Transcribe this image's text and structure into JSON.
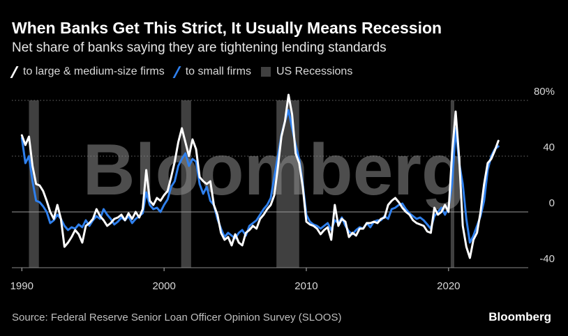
{
  "title": "When Banks Get This Strict, It Usually Means Recession",
  "subtitle": "Net share of banks saying they are tightening lending standards",
  "legend": [
    {
      "label": "to large & medium-size firms",
      "color": "#ffffff"
    },
    {
      "label": "to small firms",
      "color": "#2f80ed"
    },
    {
      "label": "US Recessions",
      "color": "#404040"
    }
  ],
  "source": "Source: Federal Reserve Senior Loan Officer Opinion Survey (SLOOS)",
  "brand": "Bloomberg",
  "watermark": "Bloomberg",
  "chart_data": {
    "type": "line",
    "title": "When Banks Get This Strict, It Usually Means Recession",
    "ylabel": "Net share of banks saying they are tightening lending standards (%)",
    "xlim": [
      1989.3,
      2025.6
    ],
    "ylim": [
      -40,
      80
    ],
    "y_ticks": [
      {
        "value": 80,
        "label": "80%"
      },
      {
        "value": 40,
        "label": "40"
      },
      {
        "value": 0,
        "label": "0"
      },
      {
        "value": -40,
        "label": "-40"
      }
    ],
    "x_ticks": [
      {
        "value": 1990,
        "label": "1990"
      },
      {
        "value": 2000,
        "label": "2000"
      },
      {
        "value": 2010,
        "label": "2010"
      },
      {
        "value": 2020,
        "label": "2020"
      }
    ],
    "recessions": [
      [
        1990.5,
        1991.2
      ],
      [
        2001.2,
        2001.9
      ],
      [
        2007.9,
        2009.5
      ],
      [
        2020.15,
        2020.4
      ]
    ],
    "series": [
      {
        "name": "to small firms",
        "color": "#2f80ed",
        "points": [
          [
            1990.0,
            53
          ],
          [
            1990.25,
            35
          ],
          [
            1990.5,
            40
          ],
          [
            1990.75,
            22
          ],
          [
            1991.0,
            8
          ],
          [
            1991.25,
            7
          ],
          [
            1991.5,
            4
          ],
          [
            1991.75,
            0
          ],
          [
            1992.0,
            -8
          ],
          [
            1992.25,
            -6
          ],
          [
            1992.5,
            -2
          ],
          [
            1992.75,
            -5
          ],
          [
            1993.0,
            -10
          ],
          [
            1993.25,
            -13
          ],
          [
            1993.5,
            -11
          ],
          [
            1993.75,
            -12
          ],
          [
            1994.0,
            -9
          ],
          [
            1994.25,
            -11
          ],
          [
            1994.5,
            -6
          ],
          [
            1994.75,
            -10
          ],
          [
            1995.0,
            -6
          ],
          [
            1995.25,
            -3
          ],
          [
            1995.5,
            -5
          ],
          [
            1995.75,
            2
          ],
          [
            1996.0,
            -2
          ],
          [
            1996.25,
            -5
          ],
          [
            1996.5,
            -9
          ],
          [
            1996.75,
            -7
          ],
          [
            1997.0,
            -4
          ],
          [
            1997.25,
            -6
          ],
          [
            1997.5,
            -3
          ],
          [
            1997.75,
            -8
          ],
          [
            1998.0,
            -5
          ],
          [
            1998.25,
            -3
          ],
          [
            1998.5,
            -1
          ],
          [
            1998.75,
            14
          ],
          [
            1999.0,
            5
          ],
          [
            1999.25,
            2
          ],
          [
            1999.5,
            3
          ],
          [
            1999.75,
            0
          ],
          [
            2000.0,
            5
          ],
          [
            2000.25,
            9
          ],
          [
            2000.5,
            18
          ],
          [
            2000.75,
            22
          ],
          [
            2001.0,
            33
          ],
          [
            2001.25,
            38
          ],
          [
            2001.5,
            42
          ],
          [
            2001.75,
            33
          ],
          [
            2002.0,
            38
          ],
          [
            2002.25,
            36
          ],
          [
            2002.5,
            20
          ],
          [
            2002.75,
            13
          ],
          [
            2003.0,
            18
          ],
          [
            2003.25,
            8
          ],
          [
            2003.5,
            5
          ],
          [
            2003.75,
            -5
          ],
          [
            2004.0,
            -12
          ],
          [
            2004.25,
            -18
          ],
          [
            2004.5,
            -15
          ],
          [
            2004.75,
            -17
          ],
          [
            2005.0,
            -19
          ],
          [
            2005.25,
            -15
          ],
          [
            2005.5,
            -13
          ],
          [
            2005.75,
            -17
          ],
          [
            2006.0,
            -10
          ],
          [
            2006.25,
            -8
          ],
          [
            2006.5,
            -6
          ],
          [
            2006.75,
            -2
          ],
          [
            2007.0,
            2
          ],
          [
            2007.25,
            5
          ],
          [
            2007.5,
            10
          ],
          [
            2007.75,
            25
          ],
          [
            2008.0,
            40
          ],
          [
            2008.25,
            55
          ],
          [
            2008.5,
            65
          ],
          [
            2008.75,
            73
          ],
          [
            2009.0,
            60
          ],
          [
            2009.25,
            48
          ],
          [
            2009.5,
            38
          ],
          [
            2009.75,
            20
          ],
          [
            2010.0,
            -2
          ],
          [
            2010.25,
            -7
          ],
          [
            2010.5,
            -9
          ],
          [
            2010.75,
            -10
          ],
          [
            2011.0,
            -12
          ],
          [
            2011.25,
            -10
          ],
          [
            2011.5,
            -8
          ],
          [
            2011.75,
            -13
          ],
          [
            2012.0,
            -6
          ],
          [
            2012.25,
            -8
          ],
          [
            2012.5,
            -4
          ],
          [
            2012.75,
            -10
          ],
          [
            2013.0,
            -14
          ],
          [
            2013.25,
            -16
          ],
          [
            2013.5,
            -13
          ],
          [
            2013.75,
            -11
          ],
          [
            2014.0,
            -12
          ],
          [
            2014.25,
            -8
          ],
          [
            2014.5,
            -11
          ],
          [
            2014.75,
            -7
          ],
          [
            2015.0,
            -6
          ],
          [
            2015.25,
            -6
          ],
          [
            2015.5,
            -3
          ],
          [
            2015.75,
            -5
          ],
          [
            2016.0,
            2
          ],
          [
            2016.25,
            3
          ],
          [
            2016.5,
            5
          ],
          [
            2016.75,
            6
          ],
          [
            2017.0,
            2
          ],
          [
            2017.25,
            -1
          ],
          [
            2017.5,
            -3
          ],
          [
            2017.75,
            -5
          ],
          [
            2018.0,
            -4
          ],
          [
            2018.25,
            -6
          ],
          [
            2018.5,
            -9
          ],
          [
            2018.75,
            -12
          ],
          [
            2019.0,
            -3
          ],
          [
            2019.25,
            0
          ],
          [
            2019.5,
            3
          ],
          [
            2019.75,
            -2
          ],
          [
            2020.0,
            3
          ],
          [
            2020.25,
            20
          ],
          [
            2020.5,
            60
          ],
          [
            2020.75,
            35
          ],
          [
            2021.0,
            20
          ],
          [
            2021.25,
            -5
          ],
          [
            2021.5,
            -22
          ],
          [
            2021.75,
            -17
          ],
          [
            2022.0,
            -10
          ],
          [
            2022.25,
            -3
          ],
          [
            2022.5,
            8
          ],
          [
            2022.75,
            30
          ],
          [
            2023.0,
            40
          ],
          [
            2023.25,
            45
          ],
          [
            2023.5,
            47
          ]
        ]
      },
      {
        "name": "to large & medium-size firms",
        "color": "#ffffff",
        "points": [
          [
            1990.0,
            55
          ],
          [
            1990.25,
            48
          ],
          [
            1990.5,
            54
          ],
          [
            1990.75,
            33
          ],
          [
            1991.0,
            20
          ],
          [
            1991.25,
            19
          ],
          [
            1991.5,
            15
          ],
          [
            1991.75,
            8
          ],
          [
            1992.0,
            0
          ],
          [
            1992.25,
            -5
          ],
          [
            1992.5,
            5
          ],
          [
            1992.75,
            -5
          ],
          [
            1993.0,
            -25
          ],
          [
            1993.25,
            -22
          ],
          [
            1993.5,
            -18
          ],
          [
            1993.75,
            -13
          ],
          [
            1994.0,
            -16
          ],
          [
            1994.25,
            -22
          ],
          [
            1994.5,
            -10
          ],
          [
            1994.75,
            -8
          ],
          [
            1995.0,
            -5
          ],
          [
            1995.25,
            2
          ],
          [
            1995.5,
            -3
          ],
          [
            1995.75,
            -6
          ],
          [
            1996.0,
            -10
          ],
          [
            1996.25,
            -8
          ],
          [
            1996.5,
            -5
          ],
          [
            1996.75,
            -4
          ],
          [
            1997.0,
            -2
          ],
          [
            1997.25,
            -6
          ],
          [
            1997.5,
            -1
          ],
          [
            1997.75,
            -5
          ],
          [
            1998.0,
            0
          ],
          [
            1998.25,
            -4
          ],
          [
            1998.5,
            2
          ],
          [
            1998.75,
            30
          ],
          [
            1999.0,
            8
          ],
          [
            1999.25,
            5
          ],
          [
            1999.5,
            10
          ],
          [
            1999.75,
            8
          ],
          [
            2000.0,
            12
          ],
          [
            2000.25,
            15
          ],
          [
            2000.5,
            25
          ],
          [
            2000.75,
            36
          ],
          [
            2001.0,
            50
          ],
          [
            2001.25,
            60
          ],
          [
            2001.5,
            50
          ],
          [
            2001.75,
            40
          ],
          [
            2002.0,
            52
          ],
          [
            2002.25,
            45
          ],
          [
            2002.5,
            25
          ],
          [
            2002.75,
            22
          ],
          [
            2003.0,
            20
          ],
          [
            2003.25,
            22
          ],
          [
            2003.5,
            5
          ],
          [
            2003.75,
            -2
          ],
          [
            2004.0,
            -15
          ],
          [
            2004.25,
            -20
          ],
          [
            2004.5,
            -18
          ],
          [
            2004.75,
            -24
          ],
          [
            2005.0,
            -16
          ],
          [
            2005.25,
            -22
          ],
          [
            2005.5,
            -24
          ],
          [
            2005.75,
            -15
          ],
          [
            2006.0,
            -13
          ],
          [
            2006.25,
            -10
          ],
          [
            2006.5,
            -12
          ],
          [
            2006.75,
            -5
          ],
          [
            2007.0,
            -2
          ],
          [
            2007.25,
            2
          ],
          [
            2007.5,
            5
          ],
          [
            2007.75,
            12
          ],
          [
            2008.0,
            32
          ],
          [
            2008.25,
            54
          ],
          [
            2008.5,
            65
          ],
          [
            2008.75,
            84
          ],
          [
            2009.0,
            70
          ],
          [
            2009.25,
            42
          ],
          [
            2009.5,
            35
          ],
          [
            2009.75,
            18
          ],
          [
            2010.0,
            -7
          ],
          [
            2010.25,
            -9
          ],
          [
            2010.5,
            -10
          ],
          [
            2010.75,
            -12
          ],
          [
            2011.0,
            -16
          ],
          [
            2011.25,
            -13
          ],
          [
            2011.5,
            -11
          ],
          [
            2011.75,
            -20
          ],
          [
            2012.0,
            5
          ],
          [
            2012.25,
            -10
          ],
          [
            2012.5,
            -5
          ],
          [
            2012.75,
            -7
          ],
          [
            2013.0,
            -18
          ],
          [
            2013.25,
            -15
          ],
          [
            2013.5,
            -17
          ],
          [
            2013.75,
            -12
          ],
          [
            2014.0,
            -12
          ],
          [
            2014.25,
            -8
          ],
          [
            2014.5,
            -8
          ],
          [
            2014.75,
            -7
          ],
          [
            2015.0,
            -8
          ],
          [
            2015.25,
            -5
          ],
          [
            2015.5,
            -4
          ],
          [
            2015.75,
            5
          ],
          [
            2016.0,
            8
          ],
          [
            2016.25,
            10
          ],
          [
            2016.5,
            7
          ],
          [
            2016.75,
            3
          ],
          [
            2017.0,
            0
          ],
          [
            2017.25,
            -2
          ],
          [
            2017.5,
            -6
          ],
          [
            2017.75,
            -8
          ],
          [
            2018.0,
            -9
          ],
          [
            2018.25,
            -10
          ],
          [
            2018.5,
            -14
          ],
          [
            2018.75,
            -15
          ],
          [
            2019.0,
            3
          ],
          [
            2019.25,
            -2
          ],
          [
            2019.5,
            0
          ],
          [
            2019.75,
            5
          ],
          [
            2020.0,
            0
          ],
          [
            2020.25,
            42
          ],
          [
            2020.5,
            72
          ],
          [
            2020.75,
            38
          ],
          [
            2021.0,
            -10
          ],
          [
            2021.25,
            -25
          ],
          [
            2021.5,
            -33
          ],
          [
            2021.75,
            -20
          ],
          [
            2022.0,
            -15
          ],
          [
            2022.25,
            0
          ],
          [
            2022.5,
            20
          ],
          [
            2022.75,
            35
          ],
          [
            2023.0,
            38
          ],
          [
            2023.25,
            44
          ],
          [
            2023.5,
            51
          ]
        ]
      }
    ]
  }
}
